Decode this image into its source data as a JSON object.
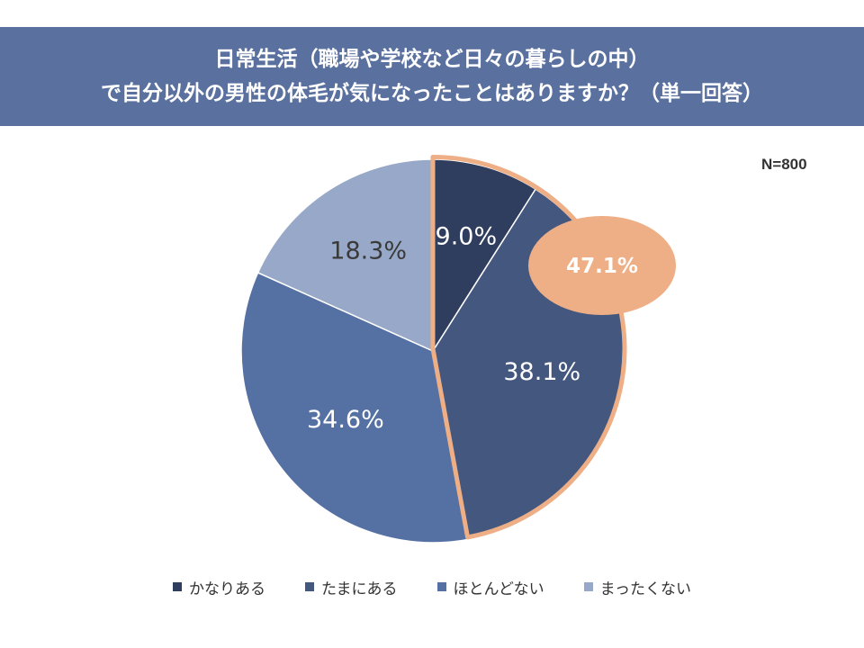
{
  "chart_data": {
    "type": "pie",
    "title_lines": [
      "日常生活（職場や学校など日々の暮らしの中）",
      "で自分以外の男性の体毛が気になったことはありますか？（単一回答）"
    ],
    "sample_size": "N=800",
    "categories": [
      "かなりある",
      "たまにある",
      "ほとんどない",
      "まったくない"
    ],
    "values": [
      9.0,
      38.1,
      34.6,
      18.3
    ],
    "value_labels": [
      "9.0%",
      "38.1%",
      "34.6%",
      "18.3%"
    ],
    "colors": [
      "#2f3e5e",
      "#44577f",
      "#5570a2",
      "#97a8c8"
    ],
    "highlight": {
      "label": "47.1%",
      "value": 47.1,
      "covers": [
        "かなりある",
        "たまにある"
      ],
      "color": "#eeaf86"
    },
    "start_angle": "12 o'clock",
    "direction": "clockwise"
  }
}
